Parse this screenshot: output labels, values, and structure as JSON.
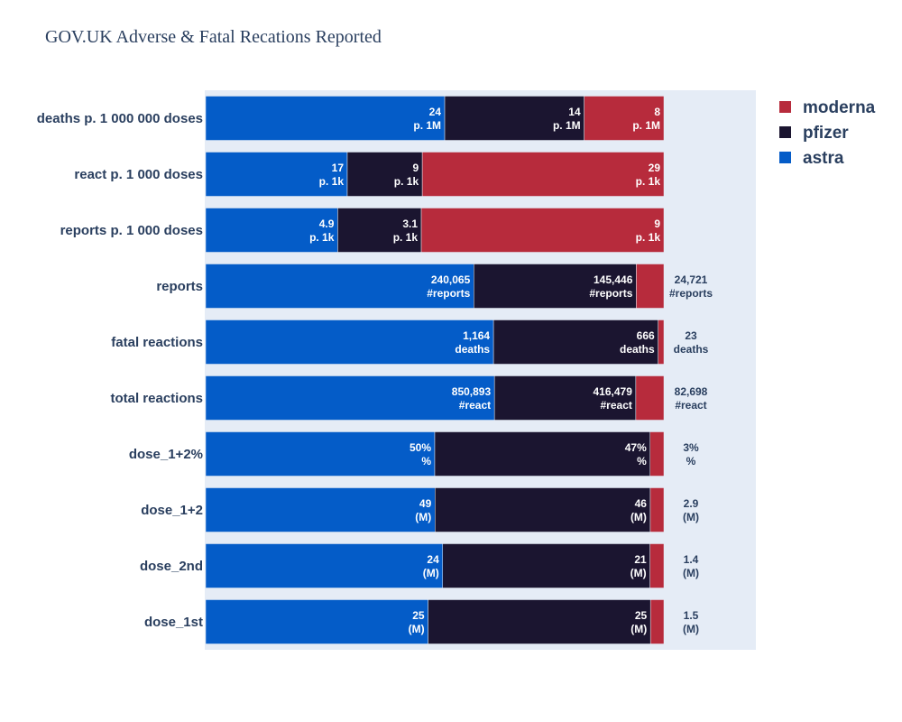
{
  "chart_data": {
    "type": "bar",
    "orientation": "horizontal",
    "barmode": "stack-normalized",
    "title": "GOV.UK Adverse & Fatal Recations Reported",
    "legend_position": "top-right",
    "categories": [
      "deaths p. 1 000 000 doses",
      "react p. 1 000 doses",
      "reports p. 1 000 doses",
      "reports",
      "fatal reactions",
      "total reactions",
      "dose_1+2%",
      "dose_1+2",
      "dose_2nd",
      "dose_1st"
    ],
    "series": [
      {
        "name": "astra",
        "color": "#045cc8",
        "values": [
          24,
          17,
          4.9,
          240065,
          1164,
          850893,
          50,
          49,
          24,
          25
        ],
        "labels": [
          [
            "24",
            "p. 1M"
          ],
          [
            "17",
            "p. 1k"
          ],
          [
            "4.9",
            "p. 1k"
          ],
          [
            "240,065",
            "#reports"
          ],
          [
            "1,164",
            "deaths"
          ],
          [
            "850,893",
            "#react"
          ],
          [
            "50%",
            "%"
          ],
          [
            "49",
            "(M)"
          ],
          [
            "24",
            "(M)"
          ],
          [
            "25",
            "(M)"
          ]
        ]
      },
      {
        "name": "pfizer",
        "color": "#1b1530",
        "values": [
          14,
          9,
          3.1,
          145446,
          666,
          416479,
          47,
          46,
          21,
          25
        ],
        "labels": [
          [
            "14",
            "p. 1M"
          ],
          [
            "9",
            "p. 1k"
          ],
          [
            "3.1",
            "p. 1k"
          ],
          [
            "145,446",
            "#reports"
          ],
          [
            "666",
            "deaths"
          ],
          [
            "416,479",
            "#react"
          ],
          [
            "47%",
            "%"
          ],
          [
            "46",
            "(M)"
          ],
          [
            "21",
            "(M)"
          ],
          [
            "25",
            "(M)"
          ]
        ]
      },
      {
        "name": "moderna",
        "color": "#b72b3c",
        "values": [
          8,
          29,
          9,
          24721,
          23,
          82698,
          3,
          2.9,
          1.4,
          1.5
        ],
        "labels": [
          [
            "8",
            "p. 1M"
          ],
          [
            "29",
            "p. 1k"
          ],
          [
            "9",
            "p. 1k"
          ],
          [
            "24,721",
            "#reports"
          ],
          [
            "23",
            "deaths"
          ],
          [
            "82,698",
            "#react"
          ],
          [
            "3%",
            "%"
          ],
          [
            "2.9",
            "(M)"
          ],
          [
            "1.4",
            "(M)"
          ],
          [
            "1.5",
            "(M)"
          ]
        ]
      }
    ],
    "legend_order": [
      "moderna",
      "pfizer",
      "astra"
    ],
    "plot_background": "#e5ecf6",
    "text_color": "#2a3f5f"
  }
}
